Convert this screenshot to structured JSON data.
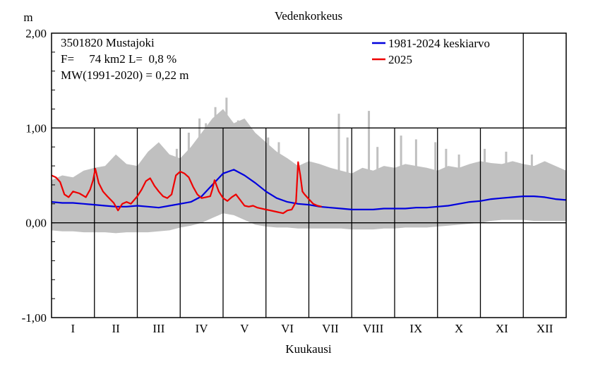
{
  "chart_data": {
    "type": "line",
    "title": "Vedenkorkeus",
    "xlabel": "Kuukausi",
    "ylabel": "m",
    "ylim": [
      -1.0,
      2.0
    ],
    "xlim": [
      0,
      12
    ],
    "x_unit": "month",
    "yticks": [
      "2,00",
      "1,00",
      "0,00",
      "-1,00"
    ],
    "ytick_values": [
      2.0,
      1.0,
      0.0,
      -1.0
    ],
    "categories": [
      "I",
      "II",
      "III",
      "IV",
      "V",
      "VI",
      "VII",
      "VIII",
      "IX",
      "X",
      "XI",
      "XII"
    ],
    "info_lines": [
      "3501820 Mustajoki",
      "F=     74 km2 L=  0,8 %",
      "MW(1991-2020) = 0,22 m"
    ],
    "legend_position": "top-right",
    "grid": true,
    "colors": {
      "mean": "#0000dd",
      "current": "#ee0000",
      "band": "#c0c0c0"
    },
    "series": [
      {
        "name": "1981-2024 keskiarvo",
        "color": "#0000dd",
        "x": [
          0,
          0.25,
          0.5,
          0.75,
          1,
          1.25,
          1.5,
          1.75,
          2,
          2.25,
          2.5,
          2.75,
          3,
          3.25,
          3.5,
          3.75,
          4,
          4.25,
          4.5,
          4.75,
          5,
          5.25,
          5.5,
          5.75,
          6,
          6.25,
          6.5,
          6.75,
          7,
          7.25,
          7.5,
          7.75,
          8,
          8.25,
          8.5,
          8.75,
          9,
          9.25,
          9.5,
          9.75,
          10,
          10.25,
          10.5,
          10.75,
          11,
          11.25,
          11.5,
          11.75,
          12
        ],
        "y": [
          0.22,
          0.21,
          0.21,
          0.2,
          0.19,
          0.18,
          0.17,
          0.17,
          0.18,
          0.17,
          0.16,
          0.18,
          0.2,
          0.22,
          0.28,
          0.4,
          0.52,
          0.56,
          0.5,
          0.42,
          0.33,
          0.26,
          0.22,
          0.2,
          0.19,
          0.17,
          0.16,
          0.15,
          0.14,
          0.14,
          0.14,
          0.15,
          0.15,
          0.15,
          0.16,
          0.16,
          0.17,
          0.18,
          0.2,
          0.22,
          0.23,
          0.25,
          0.26,
          0.27,
          0.28,
          0.28,
          0.27,
          0.25,
          0.24
        ]
      },
      {
        "name": "2025",
        "color": "#ee0000",
        "x": [
          0,
          0.1,
          0.2,
          0.3,
          0.4,
          0.5,
          0.65,
          0.8,
          0.9,
          0.97,
          1.02,
          1.1,
          1.2,
          1.3,
          1.45,
          1.55,
          1.65,
          1.75,
          1.85,
          2.0,
          2.1,
          2.2,
          2.3,
          2.4,
          2.5,
          2.6,
          2.7,
          2.8,
          2.9,
          3.0,
          3.1,
          3.2,
          3.3,
          3.4,
          3.5,
          3.6,
          3.7,
          3.75,
          3.8,
          3.9,
          4.0,
          4.1,
          4.2,
          4.3,
          4.4,
          4.5,
          4.6,
          4.7,
          4.8,
          5.0,
          5.2,
          5.4,
          5.5,
          5.6,
          5.7,
          5.75,
          5.8,
          5.85,
          5.9,
          6.0,
          6.1,
          6.2,
          6.3
        ],
        "y": [
          0.5,
          0.48,
          0.43,
          0.3,
          0.27,
          0.33,
          0.31,
          0.27,
          0.35,
          0.45,
          0.57,
          0.42,
          0.33,
          0.28,
          0.21,
          0.13,
          0.2,
          0.22,
          0.2,
          0.28,
          0.35,
          0.44,
          0.47,
          0.39,
          0.33,
          0.28,
          0.26,
          0.3,
          0.5,
          0.54,
          0.52,
          0.48,
          0.38,
          0.3,
          0.26,
          0.27,
          0.28,
          0.35,
          0.45,
          0.33,
          0.26,
          0.23,
          0.27,
          0.3,
          0.24,
          0.18,
          0.17,
          0.18,
          0.16,
          0.14,
          0.12,
          0.1,
          0.13,
          0.14,
          0.22,
          0.64,
          0.5,
          0.33,
          0.3,
          0.25,
          0.2,
          0.18,
          0.17
        ]
      }
    ],
    "band": {
      "x": [
        0,
        0.25,
        0.5,
        0.75,
        1,
        1.25,
        1.5,
        1.75,
        2,
        2.25,
        2.5,
        2.75,
        3,
        3.25,
        3.5,
        3.75,
        4,
        4.25,
        4.5,
        4.75,
        5,
        5.25,
        5.5,
        5.75,
        6,
        6.25,
        6.5,
        6.75,
        7,
        7.25,
        7.5,
        7.75,
        8,
        8.25,
        8.5,
        8.75,
        9,
        9.25,
        9.5,
        9.75,
        10,
        10.25,
        10.5,
        10.75,
        11,
        11.25,
        11.5,
        11.75,
        12
      ],
      "max": [
        0.45,
        0.5,
        0.48,
        0.55,
        0.58,
        0.6,
        0.72,
        0.62,
        0.6,
        0.75,
        0.85,
        0.72,
        0.68,
        0.8,
        0.95,
        1.1,
        1.2,
        1.05,
        1.1,
        0.95,
        0.85,
        0.75,
        0.68,
        0.6,
        0.65,
        0.62,
        0.58,
        0.55,
        0.52,
        0.58,
        0.55,
        0.6,
        0.58,
        0.62,
        0.6,
        0.58,
        0.55,
        0.6,
        0.58,
        0.62,
        0.65,
        0.63,
        0.62,
        0.65,
        0.62,
        0.6,
        0.65,
        0.6,
        0.55
      ],
      "min": [
        -0.08,
        -0.09,
        -0.09,
        -0.1,
        -0.1,
        -0.1,
        -0.11,
        -0.1,
        -0.1,
        -0.1,
        -0.09,
        -0.08,
        -0.05,
        -0.03,
        0.0,
        0.05,
        0.1,
        0.08,
        0.03,
        -0.02,
        -0.04,
        -0.05,
        -0.05,
        -0.06,
        -0.06,
        -0.06,
        -0.06,
        -0.06,
        -0.07,
        -0.07,
        -0.07,
        -0.06,
        -0.06,
        -0.05,
        -0.05,
        -0.05,
        -0.04,
        -0.03,
        -0.02,
        -0.01,
        0.0,
        0.02,
        0.03,
        0.03,
        0.03,
        0.02,
        0.02,
        0.02,
        0.02
      ]
    },
    "spikes": [
      {
        "x": 2.92,
        "y": 0.78
      },
      {
        "x": 3.2,
        "y": 0.95
      },
      {
        "x": 3.45,
        "y": 1.1
      },
      {
        "x": 3.6,
        "y": 1.05
      },
      {
        "x": 3.82,
        "y": 1.22
      },
      {
        "x": 4.08,
        "y": 1.32
      },
      {
        "x": 4.35,
        "y": 1.08
      },
      {
        "x": 5.05,
        "y": 0.9
      },
      {
        "x": 5.3,
        "y": 0.85
      },
      {
        "x": 6.7,
        "y": 1.15
      },
      {
        "x": 6.9,
        "y": 0.9
      },
      {
        "x": 7.4,
        "y": 1.18
      },
      {
        "x": 7.6,
        "y": 0.8
      },
      {
        "x": 8.15,
        "y": 0.92
      },
      {
        "x": 8.5,
        "y": 0.88
      },
      {
        "x": 8.95,
        "y": 0.85
      },
      {
        "x": 9.2,
        "y": 0.78
      },
      {
        "x": 9.5,
        "y": 0.72
      },
      {
        "x": 10.1,
        "y": 0.78
      },
      {
        "x": 10.6,
        "y": 0.75
      },
      {
        "x": 11.2,
        "y": 0.72
      }
    ]
  }
}
